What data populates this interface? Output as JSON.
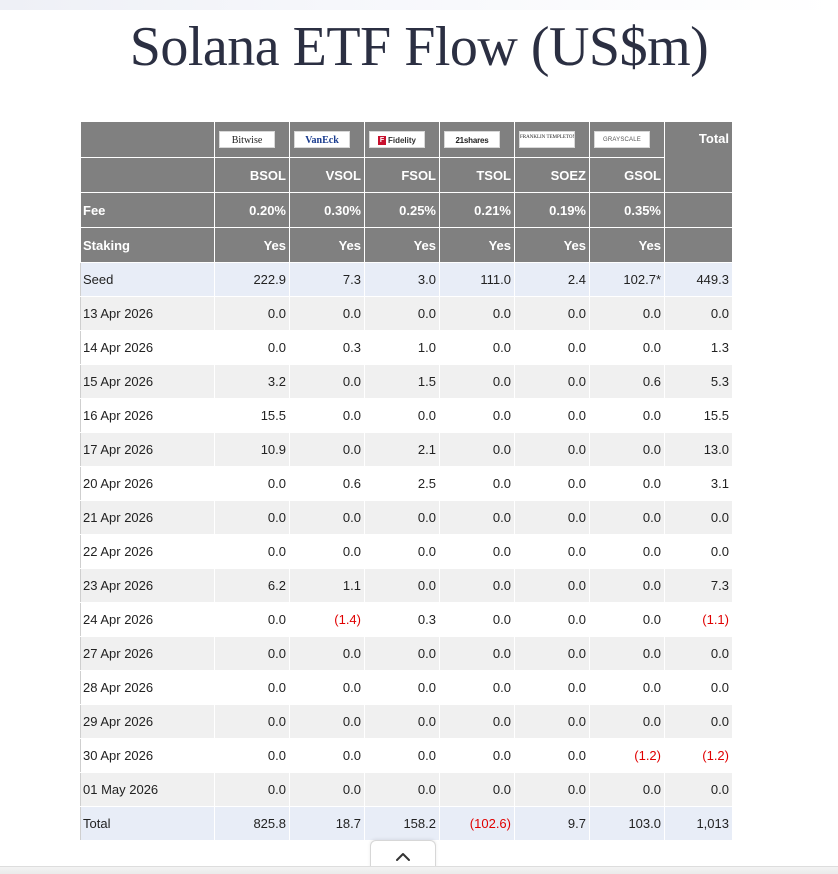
{
  "title": "Solana ETF Flow (US$m)",
  "issuers": [
    {
      "logo": "Bitwise",
      "icon": "bitwise-logo",
      "ticker": "BSOL",
      "fee": "0.20%",
      "staking": "Yes"
    },
    {
      "logo": "VanEck",
      "icon": "vaneck-logo",
      "ticker": "VSOL",
      "fee": "0.30%",
      "staking": "Yes"
    },
    {
      "logo": "Fidelity",
      "icon": "fidelity-logo",
      "ticker": "FSOL",
      "fee": "0.25%",
      "staking": "Yes"
    },
    {
      "logo": "21shares",
      "icon": "21shares-logo",
      "ticker": "TSOL",
      "fee": "0.21%",
      "staking": "Yes"
    },
    {
      "logo": "FRANKLIN TEMPLETON",
      "icon": "franklin-templeton-logo",
      "ticker": "SOEZ",
      "fee": "0.19%",
      "staking": "Yes"
    },
    {
      "logo": "GRAYSCALE",
      "icon": "grayscale-logo",
      "ticker": "GSOL",
      "fee": "0.35%",
      "staking": "Yes"
    }
  ],
  "header": {
    "total_label": "Total",
    "fee_label": "Fee",
    "staking_label": "Staking"
  },
  "rows": [
    {
      "label": "Seed",
      "values": [
        "222.9",
        "7.3",
        "3.0",
        "111.0",
        "2.4",
        "102.7*"
      ],
      "total": "449.3"
    },
    {
      "label": "13 Apr 2026",
      "values": [
        "0.0",
        "0.0",
        "0.0",
        "0.0",
        "0.0",
        "0.0"
      ],
      "total": "0.0"
    },
    {
      "label": "14 Apr 2026",
      "values": [
        "0.0",
        "0.3",
        "1.0",
        "0.0",
        "0.0",
        "0.0"
      ],
      "total": "1.3"
    },
    {
      "label": "15 Apr 2026",
      "values": [
        "3.2",
        "0.0",
        "1.5",
        "0.0",
        "0.0",
        "0.6"
      ],
      "total": "5.3"
    },
    {
      "label": "16 Apr 2026",
      "values": [
        "15.5",
        "0.0",
        "0.0",
        "0.0",
        "0.0",
        "0.0"
      ],
      "total": "15.5"
    },
    {
      "label": "17 Apr 2026",
      "values": [
        "10.9",
        "0.0",
        "2.1",
        "0.0",
        "0.0",
        "0.0"
      ],
      "total": "13.0"
    },
    {
      "label": "20 Apr 2026",
      "values": [
        "0.0",
        "0.6",
        "2.5",
        "0.0",
        "0.0",
        "0.0"
      ],
      "total": "3.1"
    },
    {
      "label": "21 Apr 2026",
      "values": [
        "0.0",
        "0.0",
        "0.0",
        "0.0",
        "0.0",
        "0.0"
      ],
      "total": "0.0"
    },
    {
      "label": "22 Apr 2026",
      "values": [
        "0.0",
        "0.0",
        "0.0",
        "0.0",
        "0.0",
        "0.0"
      ],
      "total": "0.0"
    },
    {
      "label": "23 Apr 2026",
      "values": [
        "6.2",
        "1.1",
        "0.0",
        "0.0",
        "0.0",
        "0.0"
      ],
      "total": "7.3"
    },
    {
      "label": "24 Apr 2026",
      "values": [
        "0.0",
        "(1.4)",
        "0.3",
        "0.0",
        "0.0",
        "0.0"
      ],
      "total": "(1.1)"
    },
    {
      "label": "27 Apr 2026",
      "values": [
        "0.0",
        "0.0",
        "0.0",
        "0.0",
        "0.0",
        "0.0"
      ],
      "total": "0.0"
    },
    {
      "label": "28 Apr 2026",
      "values": [
        "0.0",
        "0.0",
        "0.0",
        "0.0",
        "0.0",
        "0.0"
      ],
      "total": "0.0"
    },
    {
      "label": "29 Apr 2026",
      "values": [
        "0.0",
        "0.0",
        "0.0",
        "0.0",
        "0.0",
        "0.0"
      ],
      "total": "0.0"
    },
    {
      "label": "30 Apr 2026",
      "values": [
        "0.0",
        "0.0",
        "0.0",
        "0.0",
        "0.0",
        "(1.2)"
      ],
      "total": "(1.2)"
    },
    {
      "label": "01 May 2026",
      "values": [
        "0.0",
        "0.0",
        "0.0",
        "0.0",
        "0.0",
        "0.0"
      ],
      "total": "0.0"
    },
    {
      "label": "Total",
      "values": [
        "825.8",
        "18.7",
        "158.2",
        "(102.6)",
        "9.7",
        "103.0"
      ],
      "total": "1,013"
    }
  ],
  "colors": {
    "header_bg": "#808080",
    "negative": "#e00000",
    "highlight_row": "#e8edf7"
  },
  "scroll_button": {
    "icon": "chevron-up-icon"
  }
}
